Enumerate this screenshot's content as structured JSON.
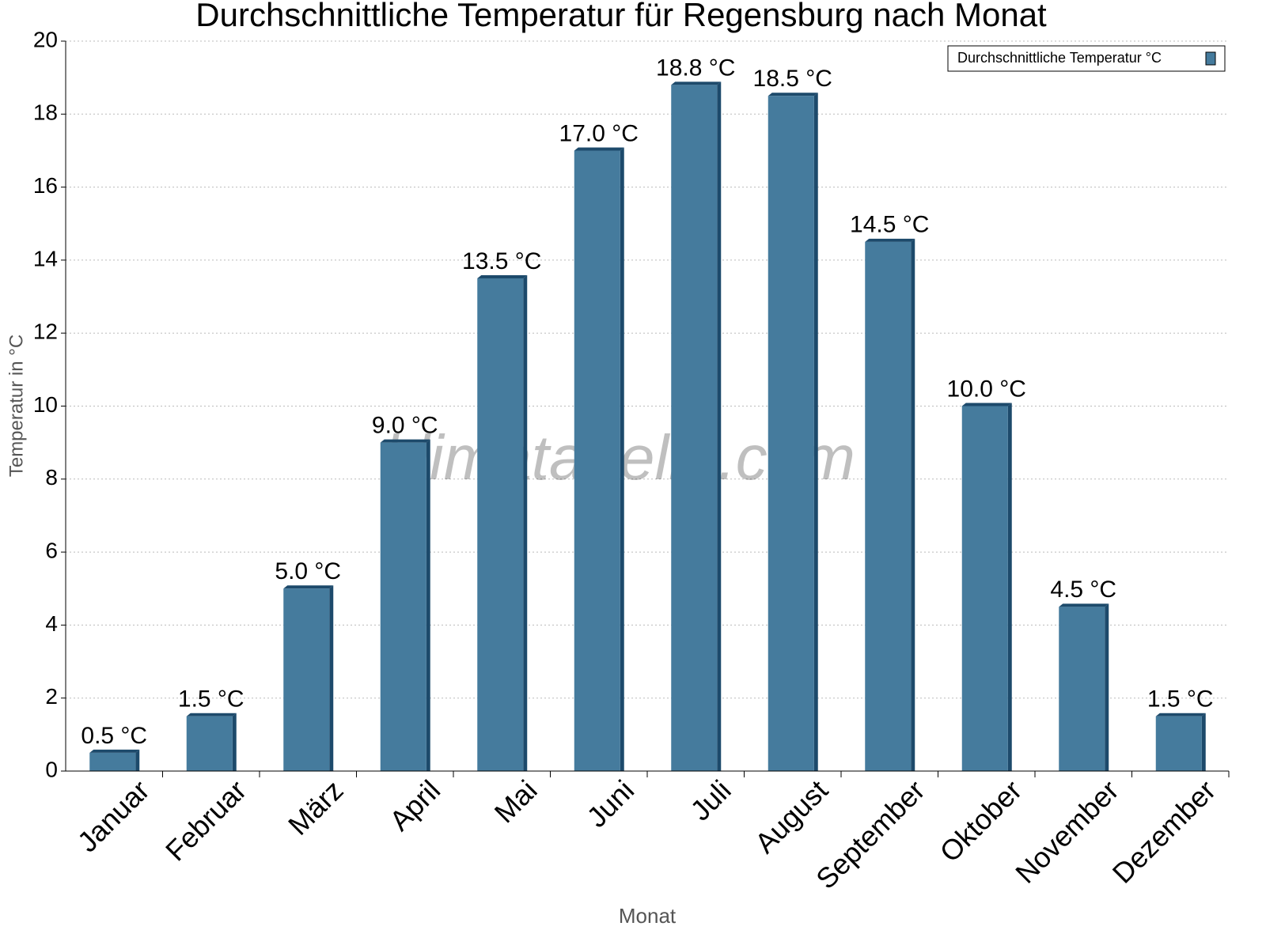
{
  "chart_data": {
    "type": "bar",
    "title": "Durchschnittliche Temperatur für Regensburg nach Monat",
    "xlabel": "Monat",
    "ylabel": "Temperatur in °C",
    "watermark": "klimatabelle.com",
    "categories": [
      "Januar",
      "Februar",
      "März",
      "April",
      "Mai",
      "Juni",
      "Juli",
      "August",
      "September",
      "Oktober",
      "November",
      "Dezember"
    ],
    "series": [
      {
        "name": "Durchschnittliche Temperatur °C",
        "color": "#457b9d",
        "values": [
          0.5,
          1.5,
          5.0,
          9.0,
          13.5,
          17.0,
          18.8,
          18.5,
          14.5,
          10.0,
          4.5,
          1.5
        ],
        "value_labels": [
          "0.5 °C",
          "1.5 °C",
          "5.0 °C",
          "9.0 °C",
          "13.5 °C",
          "17.0 °C",
          "18.8 °C",
          "18.5 °C",
          "14.5 °C",
          "10.0 °C",
          "4.5 °C",
          "1.5 °C"
        ]
      }
    ],
    "ylim": [
      0,
      20
    ],
    "yticks": [
      0,
      2,
      4,
      6,
      8,
      10,
      12,
      14,
      16,
      18,
      20
    ],
    "grid": true,
    "legend": "top-right"
  }
}
